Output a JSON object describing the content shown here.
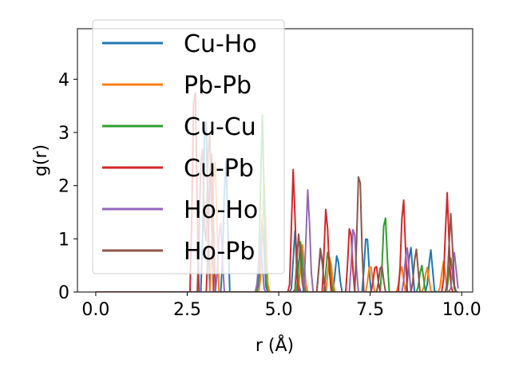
{
  "chart_data": {
    "type": "line",
    "title": "",
    "xlabel": "r (Å)",
    "ylabel": "g(r)",
    "xlim": [
      -0.5,
      10.3
    ],
    "ylim": [
      0,
      4.95
    ],
    "xticks": [
      0.0,
      2.5,
      5.0,
      7.5,
      10.0
    ],
    "xtick_labels": [
      "0.0",
      "2.5",
      "5.0",
      "7.5",
      "10.0"
    ],
    "yticks": [
      0,
      1,
      2,
      3,
      4
    ],
    "ytick_labels": [
      "0",
      "1",
      "2",
      "3",
      "4"
    ],
    "grid": false,
    "legend_position": "upper-left",
    "series": [
      {
        "name": "Cu-Ho",
        "color": "#1f77b4",
        "peaks": [
          [
            3.0,
            3.9
          ],
          [
            3.55,
            2.8
          ],
          [
            4.55,
            1.45
          ],
          [
            5.45,
            1.2
          ],
          [
            6.6,
            0.8
          ],
          [
            7.4,
            1.28
          ],
          [
            8.6,
            0.95
          ],
          [
            9.15,
            0.85
          ]
        ]
      },
      {
        "name": "Pb-Pb",
        "color": "#ff7f0e",
        "peaks": [
          [
            3.25,
            2.9
          ],
          [
            4.6,
            2.1
          ],
          [
            5.65,
            0.95
          ],
          [
            6.4,
            0.75
          ],
          [
            7.5,
            0.6
          ],
          [
            8.35,
            0.55
          ],
          [
            9.05,
            0.5
          ],
          [
            9.5,
            0.6
          ]
        ]
      },
      {
        "name": "Cu-Cu",
        "color": "#2ca02c",
        "peaks": [
          [
            4.55,
            3.45
          ],
          [
            5.6,
            1.0
          ],
          [
            6.35,
            0.85
          ],
          [
            7.9,
            1.7
          ],
          [
            8.9,
            0.55
          ],
          [
            9.7,
            0.65
          ]
        ]
      },
      {
        "name": "Cu-Pb",
        "color": "#d62728",
        "peaks": [
          [
            2.7,
            4.7
          ],
          [
            3.15,
            3.1
          ],
          [
            5.4,
            2.4
          ],
          [
            6.3,
            1.77
          ],
          [
            6.95,
            1.45
          ],
          [
            7.65,
            0.6
          ],
          [
            8.4,
            2.0
          ],
          [
            9.6,
            1.92
          ]
        ]
      },
      {
        "name": "Ho-Ho",
        "color": "#9467bd",
        "peaks": [
          [
            3.4,
            1.5
          ],
          [
            4.5,
            1.0
          ],
          [
            5.8,
            2.08
          ],
          [
            6.15,
            0.85
          ],
          [
            7.05,
            1.45
          ],
          [
            8.5,
            0.95
          ],
          [
            9.8,
            0.75
          ]
        ]
      },
      {
        "name": "Ho-Pb",
        "color": "#8c564b",
        "peaks": [
          [
            2.9,
            3.3
          ],
          [
            3.1,
            3.6
          ],
          [
            5.55,
            1.15
          ],
          [
            6.15,
            0.92
          ],
          [
            7.2,
            2.72
          ],
          [
            7.8,
            0.6
          ],
          [
            8.75,
            0.9
          ],
          [
            9.7,
            1.5
          ]
        ]
      }
    ]
  }
}
